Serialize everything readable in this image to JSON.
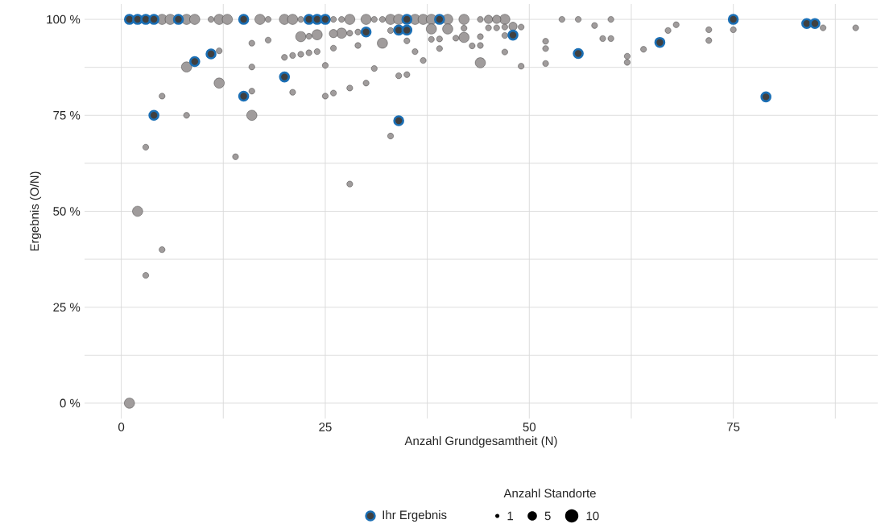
{
  "chart_data": {
    "type": "bubble",
    "xlabel": "Anzahl Grundgesamtheit (N)",
    "ylabel": "Ergebnis (O/N)",
    "legend_title": "Anzahl Standorte",
    "xlim": [
      -4.5,
      92.7
    ],
    "ylim": [
      -4,
      104
    ],
    "xticks": [
      0,
      {
        "value": 12.5,
        "label": null
      },
      25,
      {
        "value": 37.5,
        "label": null
      },
      50,
      {
        "value": 62.5,
        "label": null
      },
      75,
      {
        "value": 87.5,
        "label": null
      }
    ],
    "yticks": [
      {
        "value": 0,
        "label": "0 %"
      },
      {
        "value": 12.5,
        "label": null
      },
      {
        "value": 25,
        "label": "25 %"
      },
      {
        "value": 37.5,
        "label": null
      },
      {
        "value": 50,
        "label": "50 %"
      },
      {
        "value": 62.5,
        "label": null
      },
      {
        "value": 75,
        "label": "75 %"
      },
      {
        "value": 87.5,
        "label": null
      },
      {
        "value": 100,
        "label": "100 %"
      }
    ],
    "grid": true,
    "legend": "bottom",
    "marker": "circle",
    "size_legend": [
      1,
      5,
      10
    ],
    "series": [
      {
        "color": "#a09c9c",
        "x": [
          5,
          6,
          8,
          9,
          11,
          12,
          13,
          17,
          18,
          20,
          21,
          22,
          26,
          27,
          28,
          30,
          31,
          32,
          33,
          34,
          36,
          37,
          38,
          40,
          42,
          44,
          45,
          46,
          47,
          54,
          56,
          60,
          22,
          23,
          24,
          26,
          27,
          28,
          29,
          16,
          18,
          12,
          20,
          21,
          22,
          23,
          24,
          26,
          29,
          25,
          8,
          16,
          12,
          5,
          16,
          21,
          25,
          26,
          28,
          30,
          8,
          16,
          33,
          32,
          35,
          36,
          37,
          31,
          34,
          35,
          38,
          40,
          42,
          45,
          46,
          47,
          48,
          49,
          38,
          39,
          41,
          42,
          44,
          47,
          39,
          43,
          44,
          47,
          44,
          49,
          52,
          52,
          52,
          58,
          59,
          60,
          62,
          62,
          64,
          67,
          68,
          72,
          72,
          75,
          86,
          90,
          3,
          14,
          28,
          33,
          2,
          5,
          3,
          1
        ],
        "values": [
          100,
          100,
          100,
          100,
          100,
          100,
          100,
          100,
          100,
          100,
          100,
          100,
          100,
          100,
          100,
          100,
          100,
          100,
          100,
          100,
          100,
          100,
          100,
          100,
          100,
          100,
          100,
          100,
          100,
          100,
          100,
          100,
          95.5,
          95.6,
          96,
          96.3,
          96.4,
          96.4,
          96.7,
          93.8,
          94.6,
          91.8,
          90.1,
          90.6,
          90.9,
          91.3,
          91.6,
          92.5,
          93.2,
          88,
          87.6,
          87.6,
          83.4,
          80,
          81.3,
          81,
          80,
          80.8,
          82.1,
          83.4,
          75,
          75,
          97.1,
          93.8,
          94.4,
          91.6,
          89.3,
          87.2,
          85.3,
          85.6,
          97.5,
          97.5,
          97.7,
          97.8,
          97.8,
          98,
          98.2,
          98,
          94.8,
          94.9,
          95.1,
          95.3,
          95.5,
          95.8,
          92.4,
          93.1,
          93.2,
          91.5,
          88.7,
          87.8,
          94.3,
          92.4,
          88.5,
          98.4,
          95,
          95,
          90.4,
          88.8,
          92.2,
          97.1,
          98.6,
          97.3,
          94.5,
          97.3,
          97.8,
          97.8,
          66.7,
          64.2,
          57.1,
          69.6,
          50,
          40,
          33.3,
          0
        ],
        "sizes": [
          6,
          6,
          6,
          6,
          2,
          6,
          6,
          6,
          2,
          6,
          6,
          2,
          2,
          2,
          6,
          6,
          2,
          2,
          6,
          6,
          6,
          6,
          6,
          6,
          6,
          2,
          4,
          4,
          6,
          2,
          2,
          2,
          6,
          2,
          6,
          4,
          6,
          2,
          2,
          2,
          2,
          2,
          2,
          2,
          2,
          2,
          2,
          2,
          2,
          2,
          6,
          2,
          6,
          2,
          2,
          2,
          2,
          2,
          2,
          2,
          2,
          6,
          2,
          6,
          2,
          2,
          2,
          2,
          2,
          2,
          6,
          6,
          2,
          2,
          2,
          2,
          4,
          2,
          2,
          2,
          2,
          6,
          2,
          2,
          2,
          2,
          2,
          2,
          6,
          2,
          2,
          2,
          2,
          2,
          2,
          2,
          2,
          2,
          2,
          2,
          2,
          2,
          2,
          2,
          2,
          2,
          2,
          2,
          2,
          2,
          6,
          2,
          2,
          6
        ]
      },
      {
        "type": "scatter",
        "name": "Ihr Ergebnis",
        "color": "#1b6fb5",
        "x": [
          1,
          2,
          3,
          4,
          7,
          15,
          23,
          24,
          25,
          35,
          39,
          75,
          84,
          85,
          30,
          34,
          35,
          48,
          9,
          11,
          20,
          15,
          4,
          56,
          66,
          79,
          34
        ],
        "values": [
          100,
          100,
          100,
          100,
          100,
          100,
          100,
          100,
          100,
          100,
          100,
          100,
          98.9,
          98.9,
          96.7,
          97.2,
          97.2,
          95.9,
          89,
          91,
          85,
          80,
          75,
          91.1,
          94,
          79.8,
          73.6
        ]
      }
    ]
  }
}
